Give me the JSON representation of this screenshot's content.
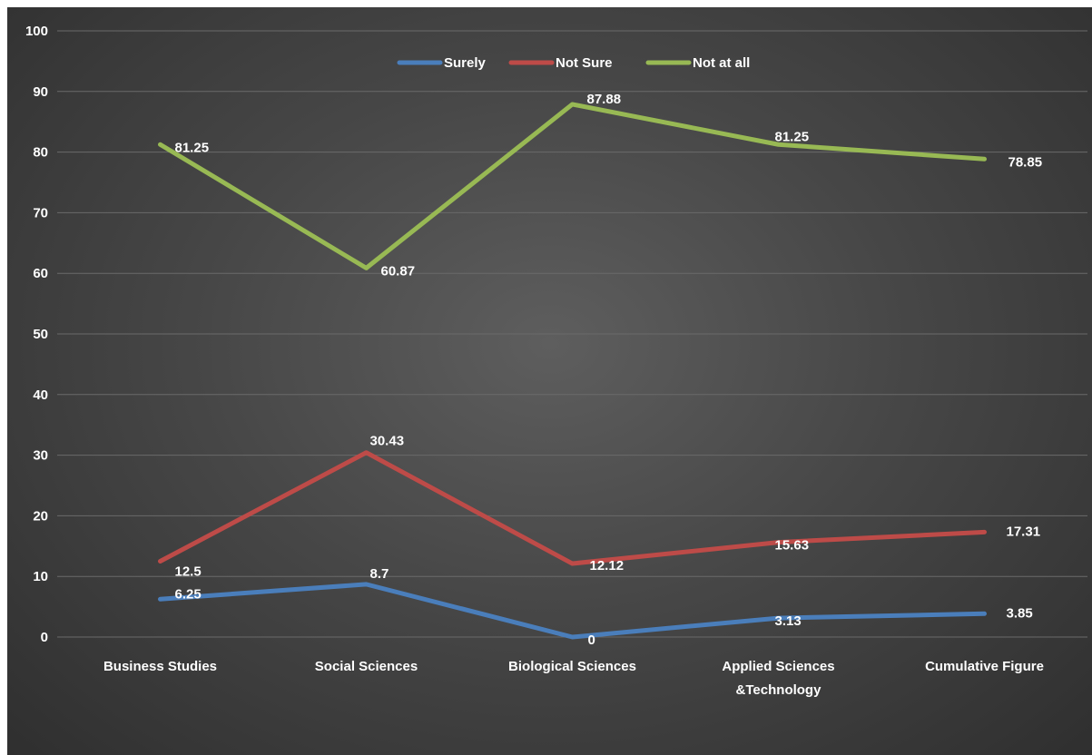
{
  "chart_data": {
    "type": "line",
    "title": "",
    "xlabel": "",
    "ylabel": "",
    "categories": [
      [
        "Business Studies"
      ],
      [
        "Social Sciences"
      ],
      [
        "Biological Sciences"
      ],
      [
        "Applied Sciences",
        "&Technology"
      ],
      [
        "Cumulative Figure"
      ]
    ],
    "ylim": [
      0,
      100
    ],
    "yticks": [
      "0",
      "10",
      "20",
      "30",
      "40",
      "50",
      "60",
      "70",
      "80",
      "90",
      "100"
    ],
    "grid": true,
    "legend_position": "top",
    "series": [
      {
        "name": "Surely",
        "color": "#4a7ebb",
        "values": [
          6.25,
          8.7,
          0,
          3.13,
          3.85
        ],
        "labels": [
          "6.25",
          "8.7",
          "0",
          "3.13",
          "3.85"
        ]
      },
      {
        "name": "Not Sure",
        "color": "#be4b48",
        "values": [
          12.5,
          30.43,
          12.12,
          15.63,
          17.31
        ],
        "labels": [
          "12.5",
          "30.43",
          "12.12",
          "15.63",
          "17.31"
        ]
      },
      {
        "name": "Not at all",
        "color": "#98b954",
        "values": [
          81.25,
          60.87,
          87.88,
          81.25,
          78.85
        ],
        "labels": [
          "81.25",
          "60.87",
          "87.88",
          "81.25",
          "78.85"
        ]
      }
    ],
    "background_color": "#3f3f3f",
    "gridline_color": "#6a6a6a",
    "text_color": "#ffffff"
  }
}
